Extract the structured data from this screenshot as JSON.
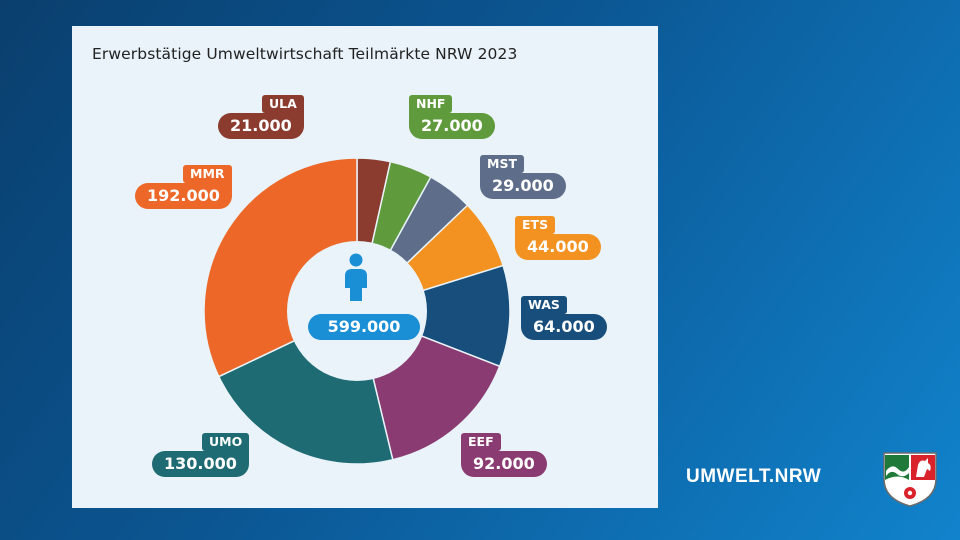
{
  "brand": {
    "text": "UMWELT.NRW"
  },
  "center": {
    "total_label": "599.000",
    "icon": "person-icon"
  },
  "chart_data": {
    "type": "pie",
    "variant": "donut",
    "title": "Erwerbstätige Umweltwirtschaft Teilmärkte NRW 2023",
    "total": 599000,
    "segments": [
      {
        "label": "ULA",
        "value": 21000,
        "value_label": "21.000",
        "color": "#8b3c2e"
      },
      {
        "label": "NHF",
        "value": 27000,
        "value_label": "27.000",
        "color": "#5f9a3c"
      },
      {
        "label": "MST",
        "value": 29000,
        "value_label": "29.000",
        "color": "#5e6e8a"
      },
      {
        "label": "ETS",
        "value": 44000,
        "value_label": "44.000",
        "color": "#f39220"
      },
      {
        "label": "WAS",
        "value": 64000,
        "value_label": "64.000",
        "color": "#174e7c"
      },
      {
        "label": "EEF",
        "value": 92000,
        "value_label": "92.000",
        "color": "#8a3b72"
      },
      {
        "label": "UMO",
        "value": 130000,
        "value_label": "130.000",
        "color": "#1e6b73"
      },
      {
        "label": "MMR",
        "value": 192000,
        "value_label": "192.000",
        "color": "#ec6728"
      }
    ]
  }
}
